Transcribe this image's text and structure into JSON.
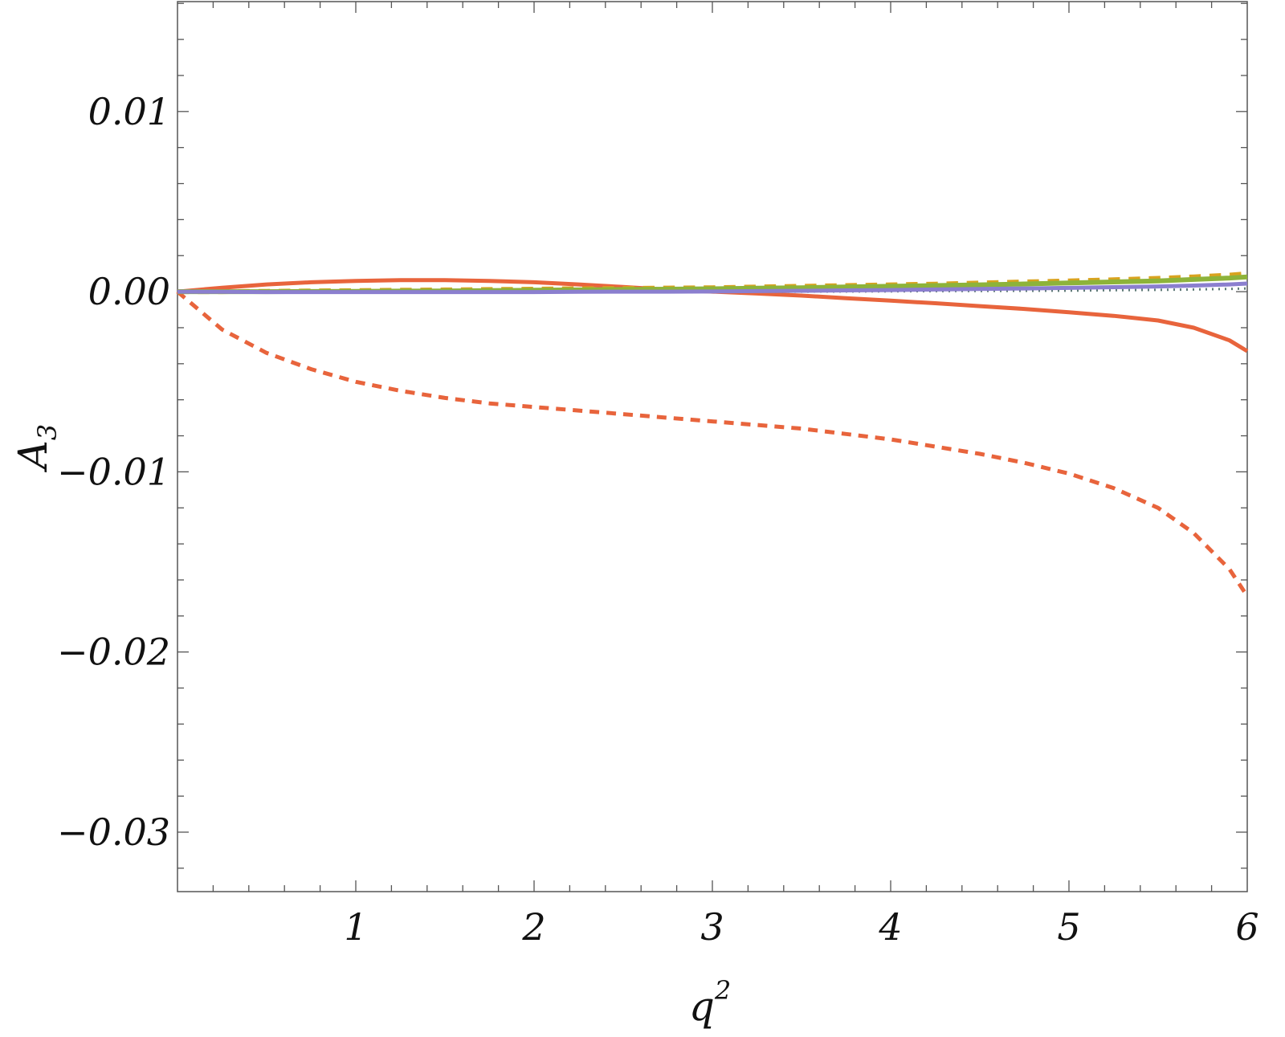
{
  "chart_data": {
    "type": "line",
    "title": "",
    "xlabel": "q",
    "xlabel_superscript": "2",
    "ylabel": "A",
    "ylabel_subscript": "3",
    "xlim": [
      0.0,
      6.0
    ],
    "ylim": [
      -0.0333,
      0.0161
    ],
    "x_ticks": [
      1,
      2,
      3,
      4,
      5,
      6
    ],
    "x_tick_labels": [
      "1",
      "2",
      "3",
      "4",
      "5",
      "6"
    ],
    "y_ticks": [
      0.01,
      0.0,
      -0.01,
      -0.02,
      -0.03
    ],
    "y_tick_labels": [
      "0.01",
      "0.00",
      "−0.01",
      "−0.02",
      "−0.03"
    ],
    "grid": false,
    "legend": "none",
    "x": [
      0.0,
      0.25,
      0.5,
      0.75,
      1.0,
      1.25,
      1.5,
      1.75,
      2.0,
      2.25,
      2.5,
      2.75,
      3.0,
      3.25,
      3.5,
      3.75,
      4.0,
      4.25,
      4.5,
      4.75,
      5.0,
      5.25,
      5.5,
      5.7,
      5.9,
      6.0
    ],
    "series": [
      {
        "color": "#e8643c",
        "dash": "solid",
        "width": 5,
        "values": [
          0.0,
          0.00022,
          0.0004,
          0.00052,
          0.0006,
          0.00064,
          0.00064,
          0.0006,
          0.00052,
          0.0004,
          0.00026,
          0.00011,
          0.0,
          -0.0001,
          -0.00022,
          -0.00036,
          -0.0005,
          -0.00064,
          -0.0008,
          -0.00096,
          -0.00114,
          -0.00134,
          -0.0016,
          -0.002,
          -0.0027,
          -0.0033
        ]
      },
      {
        "color": "#e8643c",
        "dash": "dashed",
        "width": 5,
        "values": [
          0.0,
          -0.0021,
          -0.0034,
          -0.0043,
          -0.005,
          -0.0055,
          -0.0059,
          -0.0062,
          -0.0064,
          -0.0066,
          -0.0068,
          -0.007,
          -0.0072,
          -0.0074,
          -0.0076,
          -0.0079,
          -0.0082,
          -0.0086,
          -0.009,
          -0.0095,
          -0.0101,
          -0.0109,
          -0.012,
          -0.0134,
          -0.0154,
          -0.0169
        ]
      },
      {
        "color": "#d9a31f",
        "dash": "dashed",
        "width": 6,
        "values": [
          0.0,
          0.0,
          2e-05,
          4e-05,
          6e-05,
          8e-05,
          0.0001,
          0.00012,
          0.00014,
          0.00016,
          0.00018,
          0.0002,
          0.00022,
          0.00026,
          0.0003,
          0.00034,
          0.00038,
          0.00042,
          0.00048,
          0.00054,
          0.0006,
          0.00066,
          0.00074,
          0.00082,
          0.00092,
          0.001
        ]
      },
      {
        "color": "#8db33a",
        "dash": "solid",
        "width": 6,
        "values": [
          0.0,
          0.0,
          0.0,
          1e-05,
          2e-05,
          3e-05,
          4e-05,
          6e-05,
          8e-05,
          0.0001,
          0.00012,
          0.00014,
          0.00016,
          0.00019,
          0.00022,
          0.00026,
          0.0003,
          0.00034,
          0.00038,
          0.00043,
          0.00048,
          0.00054,
          0.0006,
          0.00068,
          0.00076,
          0.00082
        ]
      },
      {
        "color": "#5f7a78",
        "dash": "dotted",
        "width": 3,
        "values": [
          0.0,
          -2e-05,
          -3e-05,
          -4e-05,
          -4e-05,
          -4e-05,
          -4e-05,
          -4e-05,
          -4e-05,
          -3e-05,
          -3e-05,
          -2e-05,
          -1e-05,
          0.0,
          0.0,
          1e-05,
          2e-05,
          3e-05,
          4e-05,
          5e-05,
          6e-05,
          8e-05,
          0.0001,
          0.00012,
          0.00015,
          0.00018
        ]
      },
      {
        "color": "#8b7fcf",
        "dash": "solid",
        "width": 5,
        "values": [
          0.0,
          -1e-05,
          -2e-05,
          -2e-05,
          -2e-05,
          -2e-05,
          -2e-05,
          -2e-05,
          -2e-05,
          -1e-05,
          0.0,
          0.0,
          1e-05,
          3e-05,
          5e-05,
          7e-05,
          9e-05,
          0.00012,
          0.00015,
          0.00018,
          0.00021,
          0.00025,
          0.00029,
          0.00034,
          0.0004,
          0.00045
        ]
      }
    ]
  }
}
